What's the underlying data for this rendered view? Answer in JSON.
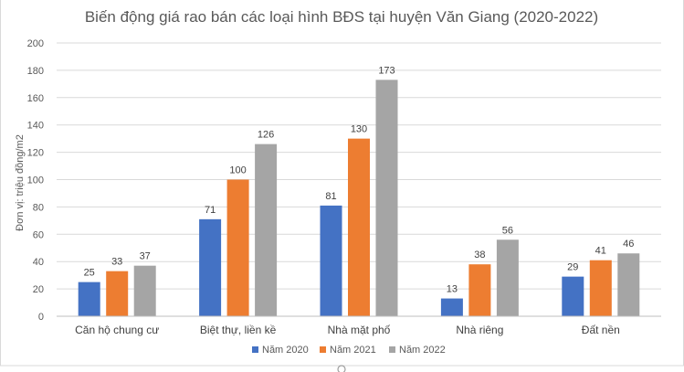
{
  "chart_data": {
    "type": "bar",
    "title": "Biến động giá rao bán các loại hình BĐS tại huyện Văn Giang (2020-2022)",
    "ylabel": "Đơn vị: triệu đồng/m2",
    "xlabel": "",
    "ylim": [
      0,
      200
    ],
    "yticks": [
      0,
      20,
      40,
      60,
      80,
      100,
      120,
      140,
      160,
      180,
      200
    ],
    "grid": true,
    "legend_position": "bottom",
    "categories": [
      "Căn hộ chung cư",
      "Biệt thự, liền kề",
      "Nhà mặt phố",
      "Nhà riêng",
      "Đất nền"
    ],
    "series": [
      {
        "name": "Năm 2020",
        "color": "#4472c4",
        "values": [
          25,
          71,
          81,
          13,
          29
        ]
      },
      {
        "name": "Năm 2021",
        "color": "#ed7d31",
        "values": [
          33,
          100,
          130,
          38,
          41
        ]
      },
      {
        "name": "Năm 2022",
        "color": "#a5a5a5",
        "values": [
          37,
          126,
          173,
          56,
          46
        ]
      }
    ]
  }
}
